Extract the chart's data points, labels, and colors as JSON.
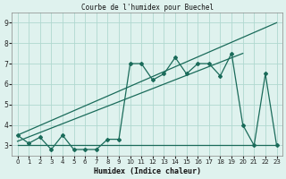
{
  "title": "Courbe de l'humidex pour Buechel",
  "xlabel": "Humidex (Indice chaleur)",
  "bg_color": "#dff2ee",
  "grid_color": "#b0d8d0",
  "line_color": "#1a6b5a",
  "xlim": [
    -0.5,
    23.5
  ],
  "ylim": [
    2.5,
    9.5
  ],
  "xticks": [
    0,
    1,
    2,
    3,
    4,
    5,
    6,
    7,
    8,
    9,
    10,
    11,
    12,
    13,
    14,
    15,
    16,
    17,
    18,
    19,
    20,
    21,
    22,
    23
  ],
  "yticks": [
    3,
    4,
    5,
    6,
    7,
    8,
    9
  ],
  "main_line_x": [
    0,
    1,
    2,
    3,
    4,
    5,
    6,
    7,
    8,
    9,
    10,
    11,
    12,
    13,
    14,
    15,
    16,
    17,
    18,
    19,
    20,
    21,
    22,
    23
  ],
  "main_line_y": [
    3.5,
    3.1,
    3.4,
    2.8,
    3.5,
    2.8,
    2.8,
    2.8,
    3.3,
    3.3,
    7.0,
    7.0,
    6.2,
    6.5,
    7.3,
    6.5,
    7.0,
    7.0,
    6.4,
    7.5,
    4.0,
    3.0,
    6.5,
    3.0
  ],
  "line1_x": [
    0,
    23
  ],
  "line1_y": [
    3.5,
    9.0
  ],
  "line2_x": [
    0,
    20
  ],
  "line2_y": [
    3.2,
    7.5
  ],
  "flat_line_x": [
    0,
    23
  ],
  "flat_line_y": [
    3.0,
    3.0
  ]
}
